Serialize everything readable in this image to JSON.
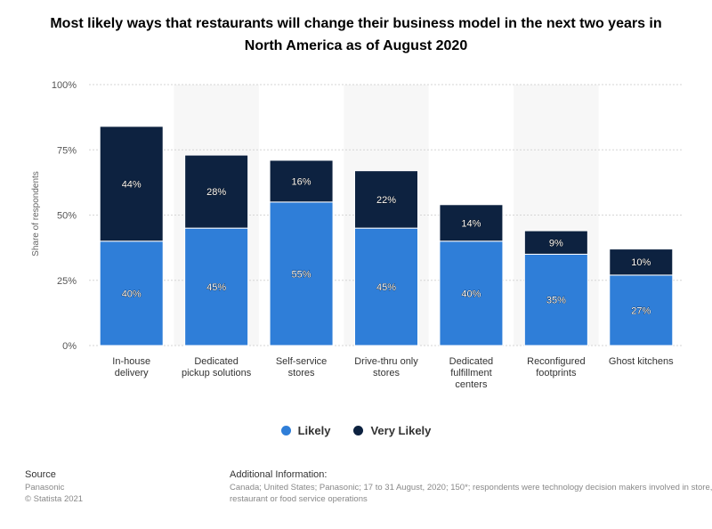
{
  "chart_data": {
    "type": "bar",
    "stacked": true,
    "title": "Most likely ways that restaurants will change their business model in the next two years in North America as of August 2020",
    "ylabel": "Share of respondents",
    "xlabel": "",
    "ylim": [
      0,
      100
    ],
    "yticks": [
      "0%",
      "25%",
      "50%",
      "75%",
      "100%"
    ],
    "categories": [
      [
        "In-house",
        "delivery"
      ],
      [
        "Dedicated",
        "pickup solutions"
      ],
      [
        "Self-service",
        "stores"
      ],
      [
        "Drive-thru only",
        "stores"
      ],
      [
        "Dedicated",
        "fulfillment",
        "centers"
      ],
      [
        "Reconfigured",
        "footprints"
      ],
      [
        "Ghost kitchens"
      ]
    ],
    "series": [
      {
        "name": "Likely",
        "color": "#2f7ed8",
        "values": [
          40,
          45,
          55,
          45,
          40,
          35,
          27
        ]
      },
      {
        "name": "Very Likely",
        "color": "#0d2240",
        "values": [
          44,
          28,
          16,
          22,
          14,
          9,
          10
        ]
      }
    ],
    "grid": true,
    "legend_position": "bottom"
  },
  "footer": {
    "source_heading": "Source",
    "source_lines": [
      "Panasonic",
      "© Statista 2021"
    ],
    "info_heading": "Additional Information:",
    "info_text": "Canada; United States; Panasonic; 17 to 31 August, 2020; 150*; respondents were technology decision makers involved in store, restaurant or food service operations"
  }
}
